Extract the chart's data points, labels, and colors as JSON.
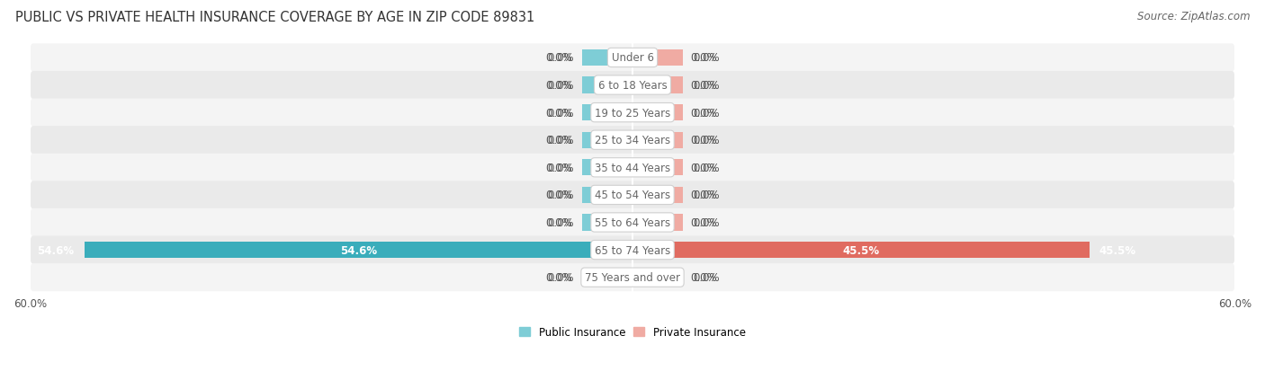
{
  "title": "PUBLIC VS PRIVATE HEALTH INSURANCE COVERAGE BY AGE IN ZIP CODE 89831",
  "source": "Source: ZipAtlas.com",
  "categories": [
    "Under 6",
    "6 to 18 Years",
    "19 to 25 Years",
    "25 to 34 Years",
    "35 to 44 Years",
    "45 to 54 Years",
    "55 to 64 Years",
    "65 to 74 Years",
    "75 Years and over"
  ],
  "public_values": [
    0.0,
    0.0,
    0.0,
    0.0,
    0.0,
    0.0,
    0.0,
    54.6,
    0.0
  ],
  "private_values": [
    0.0,
    0.0,
    0.0,
    0.0,
    0.0,
    0.0,
    0.0,
    45.5,
    0.0
  ],
  "public_color_normal": "#7ecdd6",
  "public_color_filled": "#3aadbb",
  "private_color_normal": "#f0aba3",
  "private_color_filled": "#e06b60",
  "row_bg_light": "#f4f4f4",
  "row_bg_dark": "#eaeaea",
  "xlim": 60.0,
  "stub_size": 5.0,
  "label_color": "#666666",
  "value_color": "#555555",
  "title_color": "#333333",
  "title_fontsize": 10.5,
  "source_fontsize": 8.5,
  "value_fontsize": 8.5,
  "category_fontsize": 8.5,
  "legend_fontsize": 8.5,
  "axis_label_fontsize": 8.5,
  "legend_public_label": "Public Insurance",
  "legend_private_label": "Private Insurance"
}
